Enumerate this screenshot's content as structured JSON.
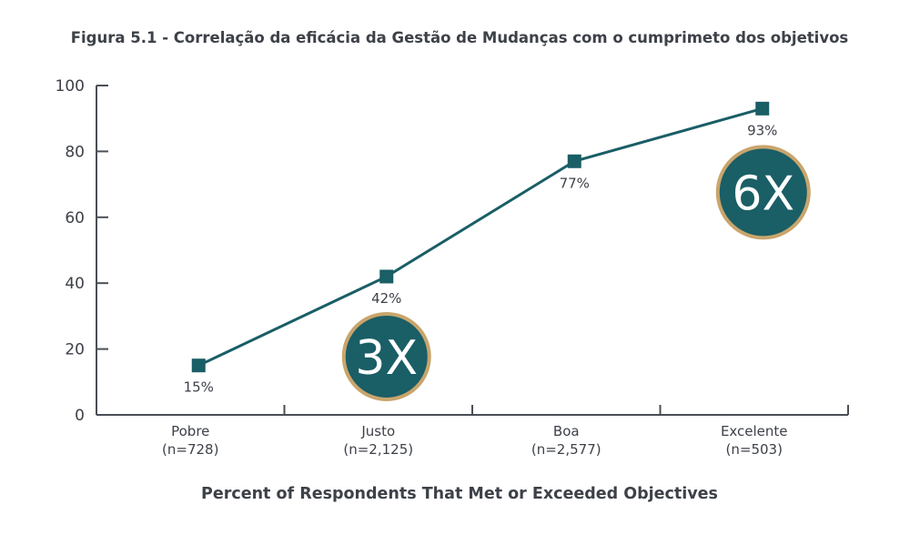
{
  "chart_data": {
    "type": "line",
    "title": "Figura 5.1 - Correlação da eficácia da Gestão de Mudanças com o cumprimeto dos objetivos",
    "xlabel": "Percent of Respondents That Met or Exceeded Objectives",
    "ylabel": "",
    "categories": [
      "Pobre",
      "Justo",
      "Boa",
      "Excelente"
    ],
    "category_counts": [
      "(n=728)",
      "(n=2,125)",
      "(n=2,577)",
      "(n=503)"
    ],
    "values": [
      15,
      42,
      77,
      93
    ],
    "data_labels": [
      "15%",
      "42%",
      "77%",
      "93%"
    ],
    "ylim": [
      0,
      100
    ],
    "yticks": [
      0,
      20,
      40,
      60,
      80,
      100
    ],
    "grid": false,
    "annotations": [
      {
        "text": "3X",
        "category": "Justo"
      },
      {
        "text": "6X",
        "category": "Excelente"
      }
    ],
    "colors": {
      "line": "#1a5e66",
      "badge_fill": "#1a5e66",
      "badge_ring": "#c9a56c",
      "axis": "#4a4e55",
      "text": "#3d4148"
    }
  }
}
